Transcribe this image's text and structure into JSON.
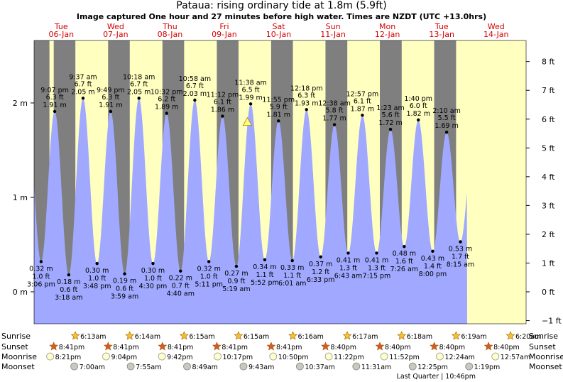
{
  "title": "Pataua: rising  ordinary tide at 1.8m (5.9ft)",
  "subtitle": "Image captured One hour and 27 minutes before high water. Times are NZDT (UTC +13.0hrs)",
  "colors": {
    "day": "#ffffc0",
    "night": "#7f7f7f",
    "tide": "#a0a9ff",
    "date_label": "#d40000",
    "marker": "#ffff80"
  },
  "days": [
    {
      "weekday": "Tue",
      "date": "06-Jan"
    },
    {
      "weekday": "Wed",
      "date": "07-Jan"
    },
    {
      "weekday": "Thu",
      "date": "08-Jan"
    },
    {
      "weekday": "Fri",
      "date": "09-Jan"
    },
    {
      "weekday": "Sat",
      "date": "10-Jan"
    },
    {
      "weekday": "Sun",
      "date": "11-Jan"
    },
    {
      "weekday": "Mon",
      "date": "12-Jan"
    },
    {
      "weekday": "Tue",
      "date": "13-Jan"
    },
    {
      "weekday": "Wed",
      "date": "14-Jan"
    }
  ],
  "chart_data": {
    "type": "area",
    "start_time": "2026-01-05T12:00",
    "xlim": [
      "2026-01-05T12:00",
      "2026-01-14T12:00"
    ],
    "ylim": [
      -0.5,
      2.65
    ],
    "left_axis": {
      "unit": "m",
      "ticks": [
        0,
        1,
        2
      ],
      "tick_labels": [
        "0 m",
        "1 m",
        "2 m"
      ]
    },
    "right_axis": {
      "unit": "ft",
      "ticks": [
        -1,
        0,
        1,
        2,
        3,
        4,
        5,
        6,
        7,
        8
      ],
      "tick_labels": [
        "−1 ft",
        "0 ft",
        "1 ft",
        "2 ft",
        "3 ft",
        "4 ft",
        "5 ft",
        "6 ft",
        "7 ft",
        "8 ft"
      ]
    },
    "series": [
      {
        "name": "",
        "points": [
          {
            "t": "2026-01-05T21:07",
            "m": 1.91,
            "ft": "6.3 ft",
            "m_label": "1.91 m",
            "time_label": "9:07 pm",
            "kind": "high"
          },
          {
            "t": "2026-01-06T03:18",
            "m": 0.18,
            "ft": "0.6 ft",
            "m_label": "0.18 m",
            "time_label": "3:18 am",
            "kind": "low"
          },
          {
            "t": "2026-01-06T09:37",
            "m": 2.05,
            "ft": "6.7 ft",
            "m_label": "2.05 m",
            "time_label": "9:37 am",
            "kind": "high"
          },
          {
            "t": "2026-01-06T15:48",
            "m": 0.3,
            "ft": "1.0 ft",
            "m_label": "0.30 m",
            "time_label": "3:48 pm",
            "kind": "low"
          },
          {
            "t": "2026-01-06T21:49",
            "m": 1.91,
            "ft": "6.3 ft",
            "m_label": "1.91 m",
            "time_label": "9:49 pm",
            "kind": "high"
          },
          {
            "t": "2026-01-07T03:59",
            "m": 0.19,
            "ft": "0.6 ft",
            "m_label": "0.19 m",
            "time_label": "3:59 am",
            "kind": "low"
          },
          {
            "t": "2026-01-07T10:18",
            "m": 2.05,
            "ft": "6.7 ft",
            "m_label": "2.05 m",
            "time_label": "10:18 am",
            "kind": "high"
          },
          {
            "t": "2026-01-07T16:30",
            "m": 0.3,
            "ft": "1.0 ft",
            "m_label": "0.30 m",
            "time_label": "4:30 pm",
            "kind": "low"
          },
          {
            "t": "2026-01-07T22:32",
            "m": 1.89,
            "ft": "6.2 ft",
            "m_label": "1.89 m",
            "time_label": "10:32 pm",
            "kind": "high"
          },
          {
            "t": "2026-01-08T04:40",
            "m": 0.22,
            "ft": "0.7 ft",
            "m_label": "0.22 m",
            "time_label": "4:40 am",
            "kind": "low"
          },
          {
            "t": "2026-01-08T10:58",
            "m": 2.03,
            "ft": "6.7 ft",
            "m_label": "2.03 m",
            "time_label": "10:58 am",
            "kind": "high"
          },
          {
            "t": "2026-01-08T17:11",
            "m": 0.32,
            "ft": "1.0 ft",
            "m_label": "0.32 m",
            "time_label": "5:11 pm",
            "kind": "low"
          },
          {
            "t": "2026-01-08T23:12",
            "m": 1.86,
            "ft": "6.1 ft",
            "m_label": "1.86 m",
            "time_label": "11:12 pm",
            "kind": "high"
          },
          {
            "t": "2026-01-09T05:19",
            "m": 0.27,
            "ft": "0.9 ft",
            "m_label": "0.27 m",
            "time_label": "5:19 am",
            "kind": "low"
          },
          {
            "t": "2026-01-09T11:38",
            "m": 1.99,
            "ft": "6.5 ft",
            "m_label": "1.99 m",
            "time_label": "11:38 am",
            "kind": "high"
          },
          {
            "t": "2026-01-09T17:52",
            "m": 0.34,
            "ft": "1.1 ft",
            "m_label": "0.34 m",
            "time_label": "5:52 pm",
            "kind": "low"
          },
          {
            "t": "2026-01-09T23:55",
            "m": 1.81,
            "ft": "5.9 ft",
            "m_label": "1.81 m",
            "time_label": "11:55 pm",
            "kind": "high"
          },
          {
            "t": "2026-01-10T06:01",
            "m": 0.33,
            "ft": "1.1 ft",
            "m_label": "0.33 m",
            "time_label": "6:01 am",
            "kind": "low"
          },
          {
            "t": "2026-01-10T12:18",
            "m": 1.93,
            "ft": "6.3 ft",
            "m_label": "1.93 m",
            "time_label": "12:18 pm",
            "kind": "high"
          },
          {
            "t": "2026-01-10T18:33",
            "m": 0.37,
            "ft": "1.2 ft",
            "m_label": "0.37 m",
            "time_label": "6:33 pm",
            "kind": "low"
          },
          {
            "t": "2026-01-11T00:38",
            "m": 1.77,
            "ft": "5.8 ft",
            "m_label": "1.77 m",
            "time_label": "12:38 am",
            "kind": "high"
          },
          {
            "t": "2026-01-11T06:43",
            "m": 0.41,
            "ft": "1.3 ft",
            "m_label": "0.41 m",
            "time_label": "6:43 am",
            "kind": "low"
          },
          {
            "t": "2026-01-11T12:57",
            "m": 1.87,
            "ft": "6.1 ft",
            "m_label": "1.87 m",
            "time_label": "12:57 pm",
            "kind": "high"
          },
          {
            "t": "2026-01-11T19:15",
            "m": 0.41,
            "ft": "1.3 ft",
            "m_label": "0.41 m",
            "time_label": "7:15 pm",
            "kind": "low"
          },
          {
            "t": "2026-01-12T01:23",
            "m": 1.72,
            "ft": "5.6 ft",
            "m_label": "1.72 m",
            "time_label": "1:23 am",
            "kind": "high"
          },
          {
            "t": "2026-01-12T07:26",
            "m": 0.48,
            "ft": "1.6 ft",
            "m_label": "0.48 m",
            "time_label": "7:26 am",
            "kind": "low"
          },
          {
            "t": "2026-01-12T13:40",
            "m": 1.82,
            "ft": "6.0 ft",
            "m_label": "1.82 m",
            "time_label": "1:40 pm",
            "kind": "high"
          },
          {
            "t": "2026-01-12T20:00",
            "m": 0.43,
            "ft": "1.4 ft",
            "m_label": "0.43 m",
            "time_label": "8:00 pm",
            "kind": "low"
          },
          {
            "t": "2026-01-13T02:10",
            "m": 1.69,
            "ft": "5.5 ft",
            "m_label": "1.69 m",
            "time_label": "2:10 am",
            "kind": "high"
          },
          {
            "t": "2026-01-13T08:15",
            "m": 0.53,
            "ft": "1.7 ft",
            "m_label": "0.53 m",
            "time_label": "8:15 am",
            "kind": "low"
          }
        ]
      }
    ],
    "first_low": {
      "t": "2026-01-05T15:06",
      "m": 0.32,
      "ft": "1.0 ft",
      "m_label": "0.32 m",
      "time_label": "3:06 pm"
    },
    "current_marker": {
      "t": "2026-01-09T10:11",
      "m": 1.8
    },
    "nights": [
      [
        "2026-01-05T12:00",
        "2026-01-05T18:47"
      ],
      [
        "2026-01-05T20:41",
        "2026-01-06T06:14"
      ],
      [
        "2026-01-06T20:41",
        "2026-01-07T06:15"
      ],
      [
        "2026-01-07T20:41",
        "2026-01-08T06:15"
      ],
      [
        "2026-01-08T20:41",
        "2026-01-09T06:16"
      ],
      [
        "2026-01-09T20:40",
        "2026-01-10T06:17"
      ],
      [
        "2026-01-10T20:40",
        "2026-01-11T06:18"
      ],
      [
        "2026-01-11T20:40",
        "2026-01-12T06:19"
      ],
      [
        "2026-01-12T20:40",
        "2026-01-13T06:20"
      ]
    ],
    "grid": false
  },
  "astro": {
    "row_labels": {
      "sunrise": "Sunrise",
      "sunset": "Sunset",
      "moonrise": "Moonrise",
      "moonset": "Moonset"
    },
    "sunrise": [
      {
        "t": "2026-01-05T06:13",
        "label": "6:13am"
      },
      {
        "t": "2026-01-06T06:14",
        "label": "6:14am"
      },
      {
        "t": "2026-01-07T06:15",
        "label": "6:15am"
      },
      {
        "t": "2026-01-08T06:15",
        "label": "6:15am"
      },
      {
        "t": "2026-01-09T06:16",
        "label": "6:16am"
      },
      {
        "t": "2026-01-10T06:17",
        "label": "6:17am"
      },
      {
        "t": "2026-01-11T06:18",
        "label": "6:18am"
      },
      {
        "t": "2026-01-12T06:19",
        "label": "6:19am"
      },
      {
        "t": "2026-01-13T06:20",
        "label": "6:20am"
      }
    ],
    "sunset": [
      {
        "t": "2026-01-04T20:41",
        "label": "8:41pm"
      },
      {
        "t": "2026-01-05T20:41",
        "label": "8:41pm"
      },
      {
        "t": "2026-01-06T20:41",
        "label": "8:41pm"
      },
      {
        "t": "2026-01-07T20:41",
        "label": "8:41pm"
      },
      {
        "t": "2026-01-08T20:41",
        "label": "8:41pm"
      },
      {
        "t": "2026-01-09T20:40",
        "label": "8:40pm"
      },
      {
        "t": "2026-01-10T20:40",
        "label": "8:40pm"
      },
      {
        "t": "2026-01-11T20:40",
        "label": "8:40pm"
      },
      {
        "t": "2026-01-12T20:40",
        "label": "8:40pm"
      }
    ],
    "moonrise": [
      {
        "t": "2026-01-04T20:21",
        "label": "8:21pm"
      },
      {
        "t": "2026-01-05T21:04",
        "label": "9:04pm"
      },
      {
        "t": "2026-01-06T21:42",
        "label": "9:42pm"
      },
      {
        "t": "2026-01-07T22:17",
        "label": "10:17pm"
      },
      {
        "t": "2026-01-08T22:50",
        "label": "10:50pm"
      },
      {
        "t": "2026-01-09T23:22",
        "label": "11:22pm"
      },
      {
        "t": "2026-01-10T23:52",
        "label": "11:52pm"
      },
      {
        "t": "2026-01-12T00:24",
        "label": "12:24am"
      },
      {
        "t": "2026-01-13T00:57",
        "label": "12:57am"
      }
    ],
    "moonset": [
      {
        "t": "2026-01-05T07:00",
        "label": "7:00am"
      },
      {
        "t": "2026-01-06T07:55",
        "label": "7:55am"
      },
      {
        "t": "2026-01-07T08:49",
        "label": "8:49am"
      },
      {
        "t": "2026-01-08T09:43",
        "label": "9:43am"
      },
      {
        "t": "2026-01-09T10:37",
        "label": "10:37am"
      },
      {
        "t": "2026-01-10T11:31",
        "label": "11:31am"
      },
      {
        "t": "2026-01-11T12:25",
        "label": "12:25pm"
      },
      {
        "t": "2026-01-12T13:19",
        "label": "1:19pm"
      }
    ],
    "moon_phase": {
      "t": "2026-01-11T22:46",
      "label": "Last Quarter | 10:46pm"
    }
  }
}
